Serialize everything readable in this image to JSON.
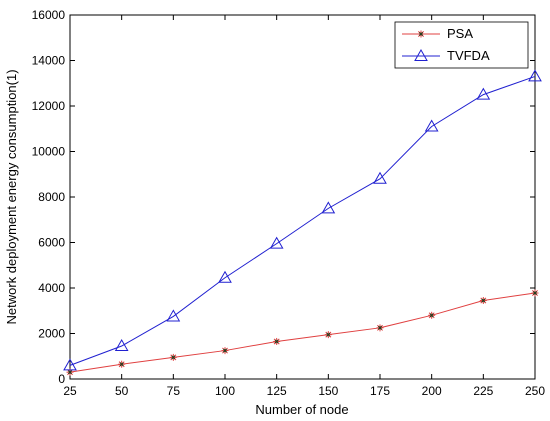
{
  "chart_data": {
    "type": "line",
    "title": "",
    "xlabel": "Number of node",
    "ylabel": "Network deployment energy consumption(1)",
    "x": [
      25,
      50,
      75,
      100,
      125,
      150,
      175,
      200,
      225,
      250
    ],
    "xlim": [
      25,
      250
    ],
    "ylim": [
      0,
      16000
    ],
    "x_ticks": [
      "25",
      "50",
      "75",
      "100",
      "125",
      "150",
      "175",
      "200",
      "225",
      "250"
    ],
    "y_ticks": [
      "0",
      "2000",
      "4000",
      "6000",
      "8000",
      "10000",
      "12000",
      "14000",
      "16000"
    ],
    "grid": false,
    "legend_position": "top-right",
    "series": [
      {
        "name": "PSA",
        "color": "#e04040",
        "marker": "asterisk",
        "values": [
          300,
          650,
          950,
          1250,
          1650,
          1950,
          2250,
          2800,
          3450,
          3780
        ]
      },
      {
        "name": "TVFDA",
        "color": "#2020d0",
        "marker": "triangle",
        "values": [
          600,
          1450,
          2750,
          4450,
          5950,
          7500,
          8800,
          11100,
          12500,
          13300
        ]
      }
    ]
  }
}
